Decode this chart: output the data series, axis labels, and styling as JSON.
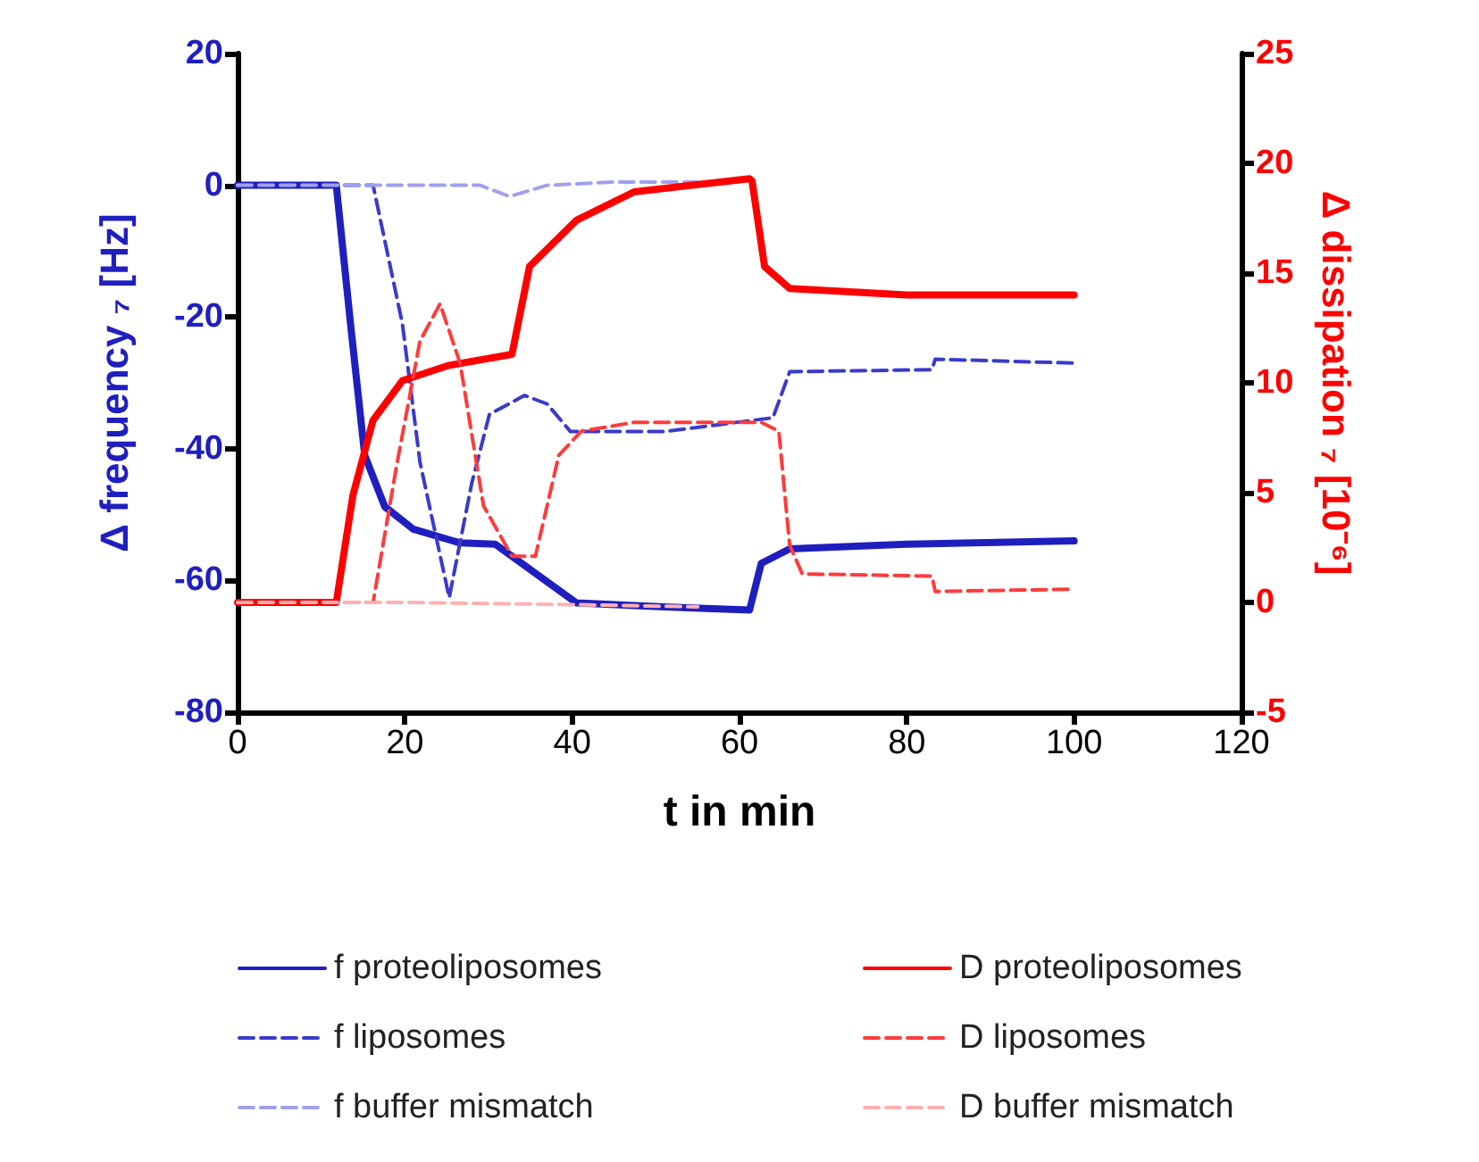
{
  "chart_data": {
    "type": "line",
    "xlabel": "t in min",
    "ylabel": "Δ frequency ₇ [Hz]",
    "y2label": "Δ dissipation ₇ [10⁻⁶]",
    "xlim": [
      0,
      120
    ],
    "xticks": [
      0,
      20,
      40,
      60,
      80,
      100,
      120
    ],
    "ylim": [
      -80,
      20
    ],
    "yticks": [
      -80,
      -60,
      -40,
      -20,
      0,
      20
    ],
    "y2lim": [
      -5,
      25
    ],
    "y2ticks": [
      -5,
      0,
      5,
      10,
      15,
      20,
      25
    ],
    "grid": false,
    "legend": "bottom",
    "marker": "none",
    "series": [
      {
        "name": "f proteoliposomes",
        "color": "#1f1fbf",
        "line_style": "solid",
        "x": [
          0,
          11.8,
          13.5,
          15.2,
          17.6,
          21,
          26.6,
          30.8,
          35.7,
          40.5,
          50.9,
          61.2,
          62.6,
          66,
          80,
          100
        ],
        "values": [
          0,
          0,
          -21,
          -41,
          -48.8,
          -52.2,
          -54.3,
          -54.5,
          -59,
          -63.4,
          -64,
          -64.5,
          -57.4,
          -55.2,
          -54.5,
          -54
        ]
      },
      {
        "name": "f liposomes",
        "color": "#3a3acc",
        "line_style": "dashed",
        "x": [
          0,
          16.2,
          19.7,
          21.8,
          25.3,
          28,
          30.1,
          34.3,
          37,
          39.8,
          50.9,
          64,
          66,
          83,
          83.4,
          100
        ],
        "values": [
          0,
          0,
          -21,
          -42,
          -62.6,
          -45.2,
          -34.8,
          -31.9,
          -33.2,
          -37.4,
          -37.4,
          -35.3,
          -28.3,
          -28,
          -26.4,
          -27
        ]
      },
      {
        "name": "f buffer mismatch",
        "color": "#a0a0f0",
        "line_style": "dashed",
        "x": [
          0,
          29,
          32.5,
          37,
          45,
          55
        ],
        "values": [
          0,
          0,
          -1.7,
          0,
          0.5,
          0.5
        ]
      },
      {
        "name": "D proteoliposomes",
        "color": "#ff0000",
        "line_style": "solid",
        "axis": "y2",
        "x": [
          0,
          11.8,
          13.8,
          16.2,
          19.7,
          25.3,
          32.8,
          34.9,
          40.5,
          47.4,
          61.2,
          61.5,
          63,
          66,
          80,
          100
        ],
        "values": [
          0,
          0,
          4.9,
          8.3,
          10.1,
          10.8,
          11.3,
          15.3,
          17.4,
          18.7,
          19.3,
          19.2,
          15.3,
          14.3,
          14,
          14
        ]
      },
      {
        "name": "D liposomes",
        "color": "#ff3b3b",
        "line_style": "dashed",
        "axis": "y2",
        "x": [
          0,
          16.2,
          19,
          21.8,
          24.2,
          26.6,
          29.4,
          32.8,
          35.6,
          38.4,
          41.1,
          47.4,
          62.6,
          64.7,
          66,
          67.5,
          83,
          83.4,
          100
        ],
        "values": [
          0,
          0,
          6.2,
          11.9,
          13.6,
          10.9,
          4.4,
          2.1,
          2.1,
          6.7,
          7.8,
          8.2,
          8.2,
          7.8,
          2.6,
          1.3,
          1.2,
          0.5,
          0.6
        ]
      },
      {
        "name": "D buffer mismatch",
        "color": "#ffb0b0",
        "line_style": "dashed",
        "axis": "y2",
        "x": [
          0,
          20,
          40,
          55
        ],
        "values": [
          0,
          0,
          -0.1,
          -0.2
        ]
      }
    ]
  }
}
